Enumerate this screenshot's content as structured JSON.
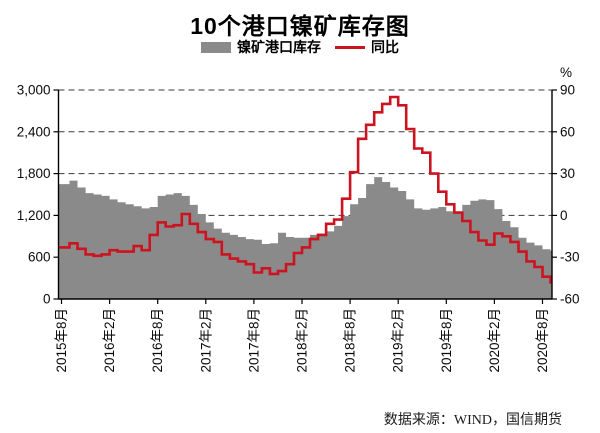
{
  "title": "10个港口镍矿库存图",
  "legend": [
    {
      "label": "镍矿港口库存",
      "type": "area",
      "color": "#8a8a8a"
    },
    {
      "label": "同比",
      "type": "line",
      "color": "#cb1420"
    }
  ],
  "footer": "数据来源：WIND，国信期货",
  "chart_data": {
    "type": "area",
    "subtype": "step-area with step-line overlay, dual y-axes",
    "start_month": "2015年8月",
    "end_month": "2020年8月",
    "x_tick_labels": [
      "2015年8月",
      "2016年2月",
      "2016年8月",
      "2017年2月",
      "2017年8月",
      "2018年2月",
      "2018年8月",
      "2019年2月",
      "2019年8月",
      "2020年2月",
      "2020年8月"
    ],
    "left_axis": {
      "min": 0,
      "max": 3000,
      "tick_labels": [
        "3,000",
        "2,400",
        "1,800",
        "1,200",
        "600",
        "0"
      ],
      "tick_values": [
        3000,
        2400,
        1800,
        1200,
        600,
        0
      ]
    },
    "right_axis": {
      "unit": "%",
      "min": -60,
      "max": 90,
      "tick_labels": [
        "90",
        "60",
        "30",
        "0",
        "-30",
        "-60"
      ],
      "tick_values": [
        90,
        60,
        30,
        0,
        -30,
        -60
      ]
    },
    "grid": "dashed horizontal at every 600 units (left) / 30% (right)",
    "legend_position": "top center",
    "series": [
      {
        "name": "镍矿港口库存",
        "axis": "left",
        "type": "area",
        "color": "#8a8a8a",
        "values": [
          1650,
          1700,
          1600,
          1520,
          1500,
          1480,
          1430,
          1390,
          1360,
          1330,
          1300,
          1320,
          1480,
          1500,
          1520,
          1480,
          1350,
          1220,
          1100,
          1010,
          950,
          920,
          890,
          860,
          850,
          790,
          800,
          950,
          890,
          880,
          880,
          920,
          940,
          970,
          1050,
          1190,
          1360,
          1450,
          1650,
          1750,
          1680,
          1600,
          1550,
          1430,
          1300,
          1280,
          1300,
          1320,
          1260,
          1240,
          1350,
          1410,
          1430,
          1420,
          1290,
          1120,
          1030,
          880,
          810,
          770,
          715,
          690
        ]
      },
      {
        "name": "同比",
        "axis": "right",
        "type": "line",
        "color": "#cb1420",
        "values": [
          -23,
          -20,
          -24,
          -28,
          -29,
          -28,
          -25,
          -26,
          -26,
          -22,
          -25,
          -14,
          -5,
          -8,
          -7,
          1,
          -6,
          -12,
          -17,
          -19,
          -28,
          -31,
          -33,
          -35,
          -41,
          -38,
          -42,
          -40,
          -35,
          -27,
          -23,
          -17,
          -14,
          -6,
          -3,
          12,
          31,
          55,
          65,
          74,
          80,
          85,
          79,
          62,
          48,
          45,
          30,
          17,
          8,
          2,
          -4,
          -12,
          -18,
          -21,
          -13,
          -15,
          -19,
          -26,
          -33,
          -37,
          -44,
          -48
        ]
      }
    ]
  }
}
